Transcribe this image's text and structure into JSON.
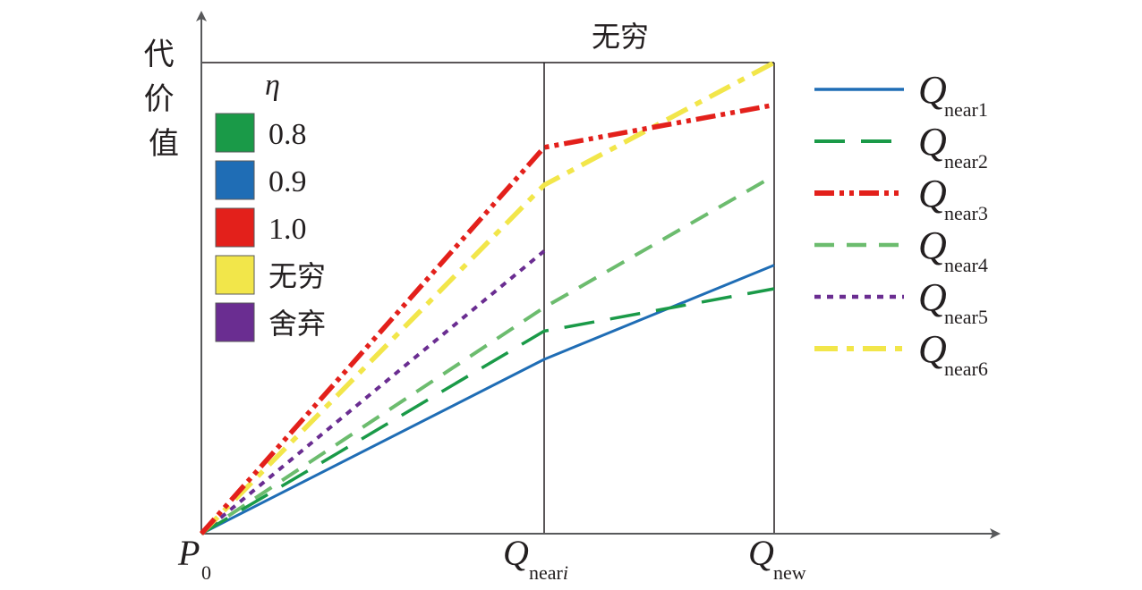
{
  "chart_data": {
    "type": "line",
    "title": "",
    "ylabel": "代价值",
    "xlabel": "",
    "top_label": "无穷",
    "x_ticks": [
      {
        "main": "P",
        "sub": "0"
      },
      {
        "main": "Q",
        "sub": "near",
        "sub_italic": "i"
      },
      {
        "main": "Q",
        "sub": "new"
      }
    ],
    "x": [
      0,
      1,
      2
    ],
    "series": [
      {
        "main": "Q",
        "sub": "near1",
        "color": "#1f6db5",
        "dash": "solid",
        "values": [
          0,
          0.37,
          0.57
        ]
      },
      {
        "main": "Q",
        "sub": "near2",
        "color": "#1a9a48",
        "dash": "long-dash",
        "values": [
          0,
          0.43,
          0.52
        ]
      },
      {
        "main": "Q",
        "sub": "near3",
        "color": "#e3201b",
        "dash": "dash-dot-dot",
        "values": [
          0,
          0.82,
          0.91
        ]
      },
      {
        "main": "Q",
        "sub": "near4",
        "color": "#6cbc6e",
        "dash": "dash",
        "values": [
          0,
          0.48,
          0.76
        ]
      },
      {
        "main": "Q",
        "sub": "near5",
        "color": "#6a2d91",
        "dash": "dot",
        "values": [
          0,
          0.6,
          null
        ]
      },
      {
        "main": "Q",
        "sub": "near6",
        "color": "#f2e64a",
        "dash": "dash-dot",
        "values": [
          0,
          0.74,
          1.0
        ]
      }
    ],
    "eta_legend": {
      "title": "η",
      "items": [
        {
          "label": "0.8",
          "color": "#1a9a48"
        },
        {
          "label": "0.9",
          "color": "#1f6db5"
        },
        {
          "label": "1.0",
          "color": "#e3201b"
        },
        {
          "label": "无穷",
          "color": "#f2e64a"
        },
        {
          "label": "舍弃",
          "color": "#6a2d91"
        }
      ]
    },
    "legend_position": "right",
    "grid": false,
    "ylim": [
      0,
      1.0
    ]
  }
}
